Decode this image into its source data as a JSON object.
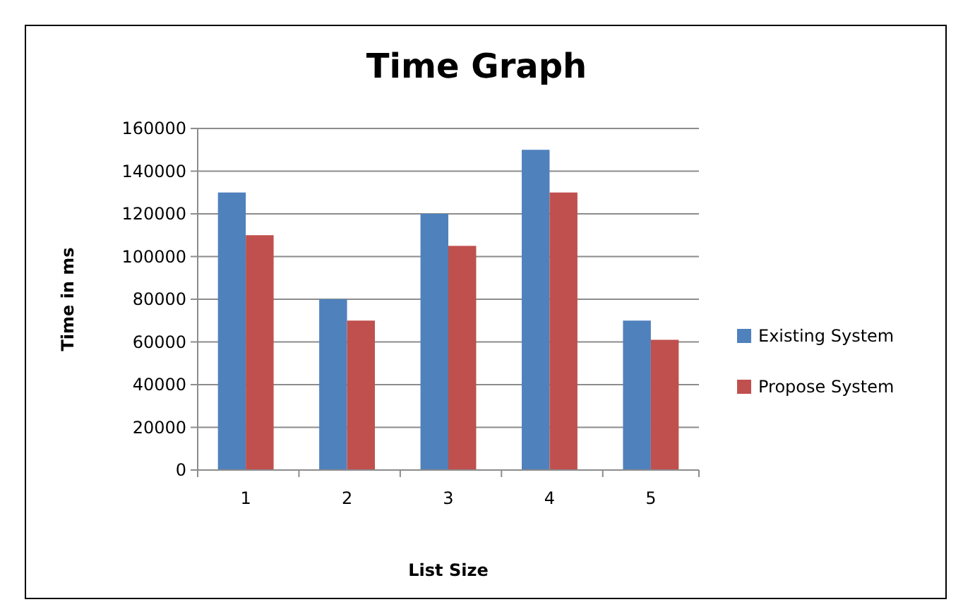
{
  "chart_data": {
    "type": "bar",
    "title": "Time Graph",
    "xlabel": "List Size",
    "ylabel": "Time in ms",
    "categories": [
      "1",
      "2",
      "3",
      "4",
      "5"
    ],
    "series": [
      {
        "name": "Existing System",
        "color": "#4f81bd",
        "values": [
          130000,
          80000,
          120000,
          150000,
          70000
        ]
      },
      {
        "name": "Propose System",
        "color": "#c0504d",
        "values": [
          110000,
          70000,
          105000,
          130000,
          61000
        ]
      }
    ],
    "ylim": [
      0,
      160000
    ],
    "yticks": [
      0,
      20000,
      40000,
      60000,
      80000,
      100000,
      120000,
      140000,
      160000
    ],
    "grid": "y",
    "legend": "right"
  }
}
